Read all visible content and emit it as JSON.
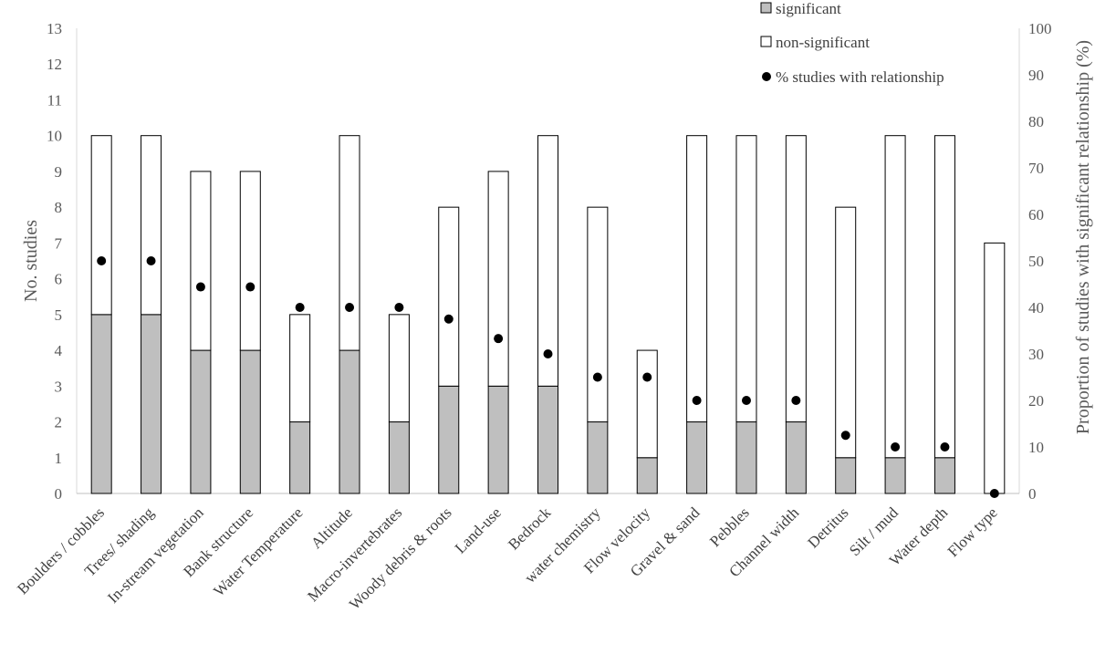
{
  "chart_data": {
    "type": "bar",
    "stacked": true,
    "categories": [
      "Boulders / cobbles",
      "Trees/ shading",
      "In-stream vegetation",
      "Bank structure",
      "Water Temperature",
      "Altitude",
      "Macro-invertebrates",
      "Woody debris & roots",
      "Land-use",
      "Bedrock",
      "water chemistry",
      "Flow velocity",
      "Gravel & sand",
      "Pebbles",
      "Channel width",
      "Detritus",
      "Silt / mud",
      "Water depth",
      "Flow type"
    ],
    "series": [
      {
        "name": "significant",
        "axis": "left",
        "color": "#bfbfbf",
        "values": [
          5,
          5,
          4,
          4,
          2,
          4,
          2,
          3,
          3,
          3,
          2,
          1,
          2,
          2,
          2,
          1,
          1,
          1,
          0
        ]
      },
      {
        "name": "non-significant",
        "axis": "left",
        "color": "#ffffff",
        "values": [
          5,
          5,
          5,
          5,
          3,
          6,
          3,
          5,
          6,
          7,
          6,
          3,
          8,
          8,
          8,
          7,
          9,
          9,
          7
        ]
      },
      {
        "name": "% studies with relationship",
        "axis": "right",
        "type": "scatter",
        "color": "#000000",
        "values": [
          50,
          50,
          44.4,
          44.4,
          40,
          40,
          40,
          37.5,
          33.3,
          30,
          25,
          25,
          20,
          20,
          20,
          12.5,
          10,
          10,
          0
        ]
      }
    ],
    "ylabel": "No. studies",
    "ylim": [
      0,
      13
    ],
    "yticks": [
      "0",
      "1",
      "2",
      "3",
      "4",
      "5",
      "6",
      "7",
      "8",
      "9",
      "10",
      "11",
      "12",
      "13"
    ],
    "y2label": "Proportion of  studies with significant relationship (%)",
    "y2lim": [
      0,
      100
    ],
    "y2ticks": [
      "0",
      "10",
      "20",
      "30",
      "40",
      "50",
      "60",
      "70",
      "80",
      "90",
      "100"
    ],
    "grid": false,
    "legend_position": "top-right"
  }
}
